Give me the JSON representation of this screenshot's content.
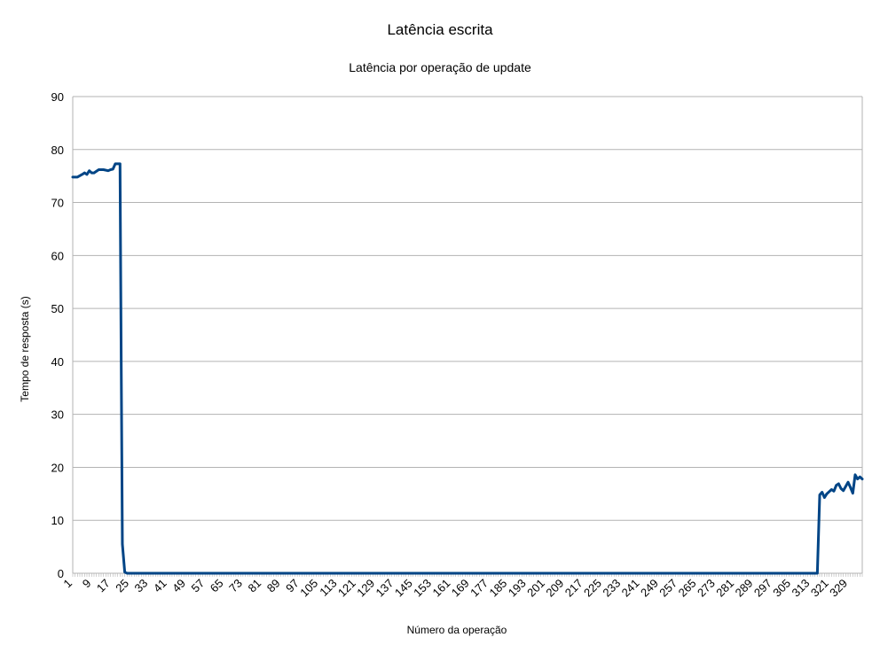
{
  "chart_data": {
    "type": "line",
    "title": "Latência escrita",
    "subtitle": "Latência por operação de update",
    "xlabel": "Número da operação",
    "ylabel": "Tempo de resposta (s)",
    "ylim": [
      0,
      90
    ],
    "yticks": [
      0,
      10,
      20,
      30,
      40,
      50,
      60,
      70,
      80,
      90
    ],
    "xlim": [
      1,
      335
    ],
    "xticks": [
      1,
      9,
      17,
      25,
      33,
      41,
      49,
      57,
      65,
      73,
      81,
      89,
      97,
      105,
      113,
      121,
      129,
      137,
      145,
      153,
      161,
      169,
      177,
      185,
      193,
      201,
      209,
      217,
      225,
      233,
      241,
      249,
      257,
      265,
      273,
      281,
      289,
      297,
      305,
      313,
      321,
      329
    ],
    "grid": true,
    "legend": "none",
    "series": [
      {
        "color": "#004586",
        "x": [
          1,
          3,
          5,
          6,
          7,
          8,
          9,
          10,
          12,
          14,
          16,
          17,
          18,
          19,
          20,
          21,
          21.5,
          22,
          23,
          24,
          316,
          317,
          318,
          319,
          320,
          321,
          322,
          323,
          324,
          325,
          326,
          327,
          328,
          329,
          330,
          331,
          332,
          333,
          334,
          335
        ],
        "y": [
          74.8,
          74.8,
          75.3,
          75.6,
          75.3,
          76.0,
          75.6,
          75.6,
          76.2,
          76.2,
          76.0,
          76.2,
          76.3,
          77.3,
          77.3,
          77.3,
          40,
          5.5,
          0.2,
          0,
          0,
          14.8,
          15.3,
          14.3,
          15.0,
          15.4,
          15.8,
          15.5,
          16.6,
          16.9,
          16.0,
          15.6,
          16.4,
          17.2,
          16.2,
          15.1,
          18.6,
          17.8,
          18.2,
          17.8
        ]
      }
    ]
  }
}
